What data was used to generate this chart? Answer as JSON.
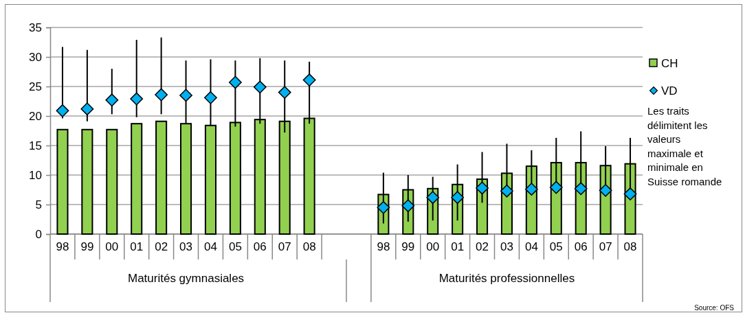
{
  "chart_data": {
    "type": "bar",
    "categories": [
      "98",
      "99",
      "00",
      "01",
      "02",
      "03",
      "04",
      "05",
      "06",
      "07",
      "08",
      null,
      null,
      "98",
      "99",
      "00",
      "01",
      "02",
      "03",
      "04",
      "05",
      "06",
      "07",
      "08"
    ],
    "series": [
      {
        "name": "CH",
        "color": "#92d050",
        "values": [
          17.7,
          17.7,
          17.7,
          18.7,
          19.1,
          18.7,
          18.4,
          18.9,
          19.4,
          19.1,
          19.6,
          null,
          null,
          6.7,
          7.5,
          7.7,
          8.4,
          9.3,
          10.3,
          11.5,
          12.1,
          12.1,
          11.6,
          11.9
        ]
      },
      {
        "name": "VD",
        "type": "scatter",
        "marker": "diamond",
        "color": "#00b0f0",
        "values": [
          20.9,
          21.2,
          22.7,
          22.9,
          23.6,
          23.5,
          23.1,
          25.7,
          24.9,
          24.0,
          26.1,
          null,
          null,
          4.5,
          4.8,
          6.2,
          6.2,
          7.8,
          7.3,
          7.6,
          7.9,
          7.7,
          7.4,
          6.8
        ],
        "errors": [
          [
            19.6,
            31.7
          ],
          [
            19.1,
            31.2
          ],
          [
            20.3,
            28.0
          ],
          [
            19.8,
            32.9
          ],
          [
            20.3,
            33.3
          ],
          [
            18.8,
            29.4
          ],
          [
            18.3,
            29.6
          ],
          [
            18.2,
            29.4
          ],
          [
            18.7,
            29.8
          ],
          [
            17.2,
            29.4
          ],
          [
            18.7,
            29.2
          ],
          null,
          null,
          [
            1.8,
            10.4
          ],
          [
            2.1,
            10.0
          ],
          [
            2.3,
            9.7
          ],
          [
            2.3,
            11.8
          ],
          [
            5.3,
            13.9
          ],
          [
            7.0,
            15.3
          ],
          [
            7.3,
            14.2
          ],
          [
            7.6,
            16.3
          ],
          [
            7.4,
            17.4
          ],
          [
            7.1,
            14.9
          ],
          [
            6.5,
            16.3
          ]
        ]
      }
    ],
    "ylim": [
      0,
      35
    ],
    "yticks": [
      0,
      5,
      10,
      15,
      20,
      25,
      30,
      35
    ],
    "grid": "y",
    "legend": "right",
    "annotations": [
      "Maturités gymnasiales",
      "Maturités professionnelles",
      "Les traits délimitent les valeurs maximale et minimale en Suisse romande",
      "Source: OFS"
    ]
  }
}
